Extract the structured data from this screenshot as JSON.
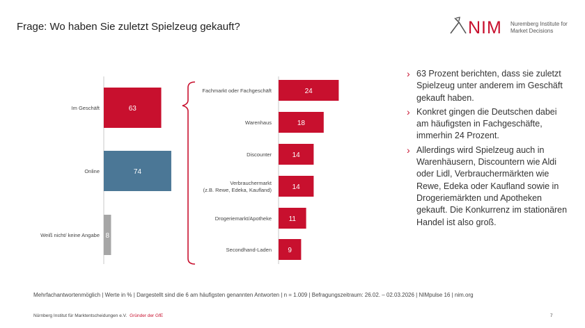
{
  "header": {
    "title": "Frage: Wo haben Sie zuletzt Spielzeug gekauft?"
  },
  "logo": {
    "text": "NIM",
    "sub": "Nuremberg Institute for Market Decisions"
  },
  "colors": {
    "red": "#c8102e",
    "blue": "#4b7796",
    "gray": "#a6a6a6"
  },
  "chart_data": [
    {
      "type": "bar",
      "orientation": "horizontal",
      "categories": [
        "Im Geschäft",
        "Online",
        "Weiß nicht/ keine Angabe"
      ],
      "values": [
        63,
        74,
        8
      ],
      "colors": [
        "#c8102e",
        "#4b7796",
        "#a6a6a6"
      ],
      "title": "",
      "xlabel": "",
      "ylabel": "",
      "xlim": [
        0,
        100
      ]
    },
    {
      "type": "bar",
      "orientation": "horizontal",
      "categories": [
        "Fachmarkt oder Fachgeschäft",
        "Warenhaus",
        "Discounter",
        "Verbrauchermarkt\n(z.B. Rewe, Edeka, Kaufland)",
        "Drogeriemarkt/Apotheke",
        "Secondhand-Laden"
      ],
      "values": [
        24,
        18,
        14,
        14,
        11,
        9
      ],
      "color": "#c8102e",
      "title": "",
      "xlabel": "",
      "ylabel": "",
      "xlim": [
        0,
        100
      ]
    }
  ],
  "bullets": [
    "63 Prozent berichten, dass sie zuletzt Spielzeug unter anderem im Geschäft gekauft haben.",
    "Konkret gingen die Deutschen dabei am häufigsten in Fachgeschäfte, immerhin 24 Prozent.",
    "Allerdings wird Spielzeug auch in Warenhäusern, Discountern wie Aldi oder Lidl, Verbrauchermärkten wie Rewe, Edeka oder Kaufland sowie in Drogeriemärkten und Apotheken gekauft. Die Konkurrenz im stationären Handel ist also groß."
  ],
  "footnote": "Mehrfachantwortenmöglich | Werte in % | Dargestellt sind die 6 am häufigsten genannten Antworten | n = 1.009 | Befragungszeitraum: 26.02. – 02.03.2026 | NIMpulse 16 | nim.org",
  "footer": {
    "org": "Nürnberg Institut für Marktentscheidungen e.V.",
    "gfe": "Gründer der GfE",
    "page": "7"
  }
}
